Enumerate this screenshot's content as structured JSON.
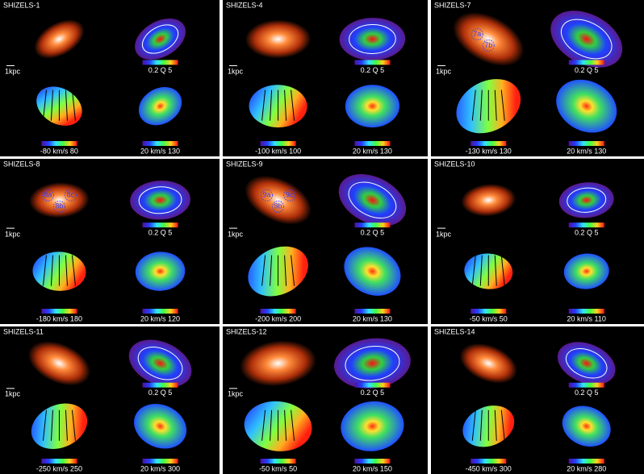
{
  "panels": [
    {
      "name": "SHIZELS-1",
      "scale": "1kpc",
      "q_bar": "0.2 Q 5",
      "velocity_bar": "-80 km/s 80",
      "dispersion_bar": "20 km/s 130",
      "regions": []
    },
    {
      "name": "SHIZELS-4",
      "scale": "1kpc",
      "q_bar": "0.2 Q 5",
      "velocity_bar": "-100 km/s 100",
      "dispersion_bar": "20 km/s 130",
      "regions": []
    },
    {
      "name": "SHIZELS-7",
      "scale": "1kpc",
      "q_bar": "0.2 Q 5",
      "velocity_bar": "-130 km/s 130",
      "dispersion_bar": "20 km/s 130",
      "regions": [
        "7a",
        "7b"
      ]
    },
    {
      "name": "SHIZELS-8",
      "scale": "1kpc",
      "q_bar": "0.2 Q 5",
      "velocity_bar": "-180 km/s 180",
      "dispersion_bar": "20 km/s 120",
      "regions": [
        "8a",
        "8b",
        "8c"
      ]
    },
    {
      "name": "SHIZELS-9",
      "scale": "1kpc",
      "q_bar": "0.2 Q 5",
      "velocity_bar": "-200 km/s 200",
      "dispersion_bar": "20 km/s 130",
      "regions": [
        "9a",
        "9b",
        "9c"
      ]
    },
    {
      "name": "SHIZELS-10",
      "scale": "1kpc",
      "q_bar": "0.2 Q 5",
      "velocity_bar": "-50 km/s 50",
      "dispersion_bar": "20 km/s 110",
      "regions": []
    },
    {
      "name": "SHIZELS-11",
      "scale": "1kpc",
      "q_bar": "0.2 Q 5",
      "velocity_bar": "-250 km/s 250",
      "dispersion_bar": "20 km/s 300",
      "regions": []
    },
    {
      "name": "SHIZELS-12",
      "scale": "1kpc",
      "q_bar": "0.2 Q 5",
      "velocity_bar": "-50 km/s 50",
      "dispersion_bar": "20 km/s 150",
      "regions": []
    },
    {
      "name": "SHIZELS-14",
      "q_bar": "0.2 Q 5",
      "velocity_bar": "-450 km/s 300",
      "dispersion_bar": "20 km/s 280",
      "regions": []
    }
  ]
}
